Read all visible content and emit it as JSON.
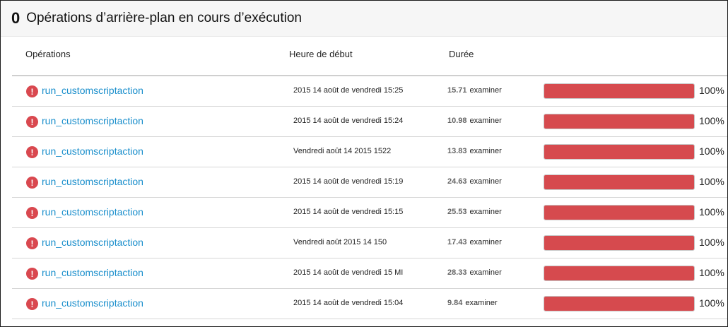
{
  "header": {
    "count": "0",
    "title": "Opérations d’arrière-plan en cours d’exécution"
  },
  "columns": {
    "operations": "Opérations",
    "start": "Heure de début",
    "duration": "Durée"
  },
  "rows": [
    {
      "operation": "run_customscriptaction",
      "start": "2015 14 août de vendredi 15:25",
      "duration": "15.71",
      "action": "examiner",
      "progress": 1.0,
      "percent": "100%"
    },
    {
      "operation": "run_customscriptaction",
      "start": "2015 14 août de vendredi 15:24",
      "duration": "10.98",
      "action": "examiner",
      "progress": 1.0,
      "percent": "100%"
    },
    {
      "operation": "run_customscriptaction",
      "start": "Vendredi août 14 2015 1522",
      "duration": "13.83",
      "action": "examiner",
      "progress": 1.0,
      "percent": "100%"
    },
    {
      "operation": "run_customscriptaction",
      "start": "2015 14 août de vendredi 15:19",
      "duration": "24.63",
      "action": "examiner",
      "progress": 1.0,
      "percent": "100%"
    },
    {
      "operation": "run_customscriptaction",
      "start": "2015 14 août de vendredi 15:15",
      "duration": "25.53",
      "action": "examiner",
      "progress": 1.0,
      "percent": "100%"
    },
    {
      "operation": "run_customscriptaction",
      "start": "Vendredi août 2015 14 150",
      "duration": "17.43",
      "action": "examiner",
      "progress": 1.0,
      "percent": "100%"
    },
    {
      "operation": "run_customscriptaction",
      "start": "2015 14 août de vendredi 15 MI",
      "duration": "28.33",
      "action": "examiner",
      "progress": 1.0,
      "percent": "100%"
    },
    {
      "operation": "run_customscriptaction",
      "start": "2015 14 août de vendredi 15:04",
      "duration": "9.84",
      "action": "examiner",
      "progress": 1.0,
      "percent": "100%"
    }
  ],
  "colors": {
    "error": "#d9484f",
    "link": "#1b8fcc",
    "bar_fill": "#d64a4e"
  },
  "icons": {
    "status": "error-circle-icon"
  }
}
